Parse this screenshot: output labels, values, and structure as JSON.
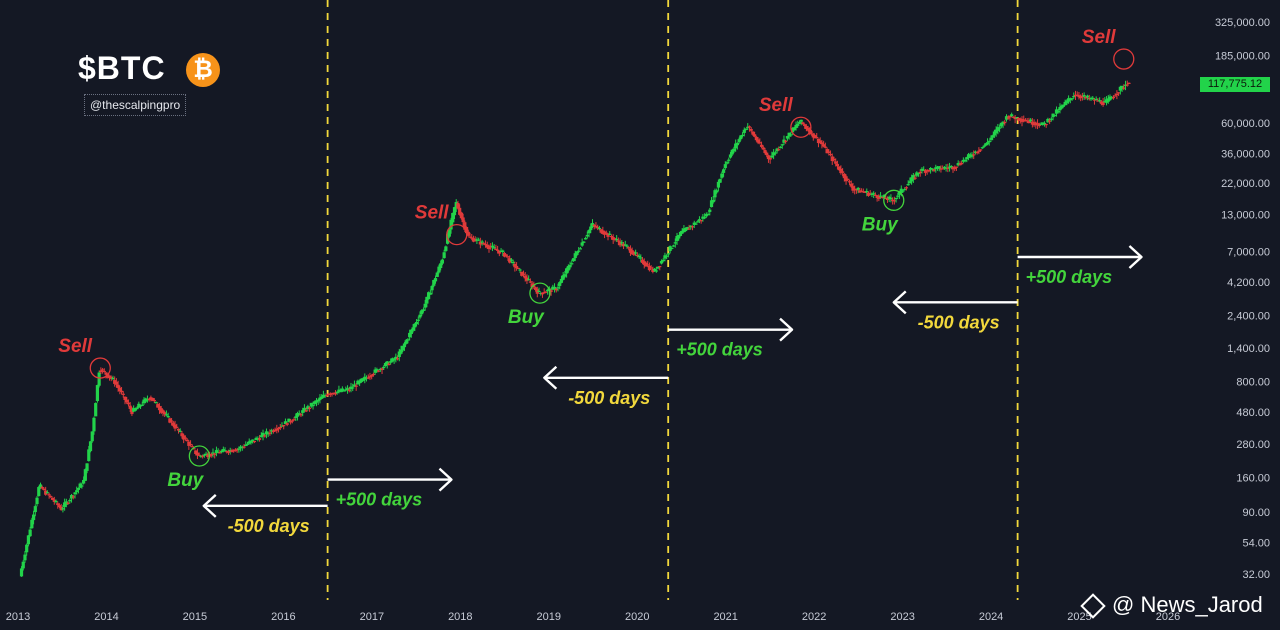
{
  "header": {
    "title": "$BTC",
    "logo_glyph": "₿",
    "handle": "@thescalpingpro",
    "current_price": "117,775.12"
  },
  "watermark": {
    "text": "@ News_Jarod",
    "icon": "binance-diamond-icon"
  },
  "colors": {
    "background": "#141824",
    "up": "#22d34a",
    "down": "#e03a3a",
    "halving_line": "#f2d83c",
    "arrow": "#ffffff",
    "buy": "#43d43c",
    "sell": "#e03a3a",
    "minus_label": "#f2d83c"
  },
  "chart_data": {
    "type": "candlestick",
    "scale": "log",
    "ylim": [
      25,
      325000
    ],
    "y_ticks": [
      {
        "value": 325000,
        "label": "325,000.00"
      },
      {
        "value": 185000,
        "label": "185,000.00"
      },
      {
        "value": 60000,
        "label": "60,000.00"
      },
      {
        "value": 36000,
        "label": "36,000.00"
      },
      {
        "value": 22000,
        "label": "22,000.00"
      },
      {
        "value": 13000,
        "label": "13,000.00"
      },
      {
        "value": 7000,
        "label": "7,000.00"
      },
      {
        "value": 4200,
        "label": "4,200.00"
      },
      {
        "value": 2400,
        "label": "2,400.00"
      },
      {
        "value": 1400,
        "label": "1,400.00"
      },
      {
        "value": 800,
        "label": "800.00"
      },
      {
        "value": 480,
        "label": "480.00"
      },
      {
        "value": 280,
        "label": "280.00"
      },
      {
        "value": 160,
        "label": "160.00"
      },
      {
        "value": 90,
        "label": "90.00"
      },
      {
        "value": 54,
        "label": "54.00"
      },
      {
        "value": 32,
        "label": "32.00"
      }
    ],
    "x_ticks": [
      "2013",
      "2014",
      "2015",
      "2016",
      "2017",
      "2018",
      "2019",
      "2020",
      "2021",
      "2022",
      "2023",
      "2024",
      "2025",
      "2026"
    ],
    "price_path": [
      {
        "x": 2013.0,
        "y": 25
      },
      {
        "x": 2013.25,
        "y": 140
      },
      {
        "x": 2013.5,
        "y": 95
      },
      {
        "x": 2013.75,
        "y": 150
      },
      {
        "x": 2013.85,
        "y": 350
      },
      {
        "x": 2013.93,
        "y": 1000
      },
      {
        "x": 2014.1,
        "y": 800
      },
      {
        "x": 2014.3,
        "y": 480
      },
      {
        "x": 2014.5,
        "y": 620
      },
      {
        "x": 2014.75,
        "y": 400
      },
      {
        "x": 2015.05,
        "y": 230
      },
      {
        "x": 2015.5,
        "y": 260
      },
      {
        "x": 2015.8,
        "y": 330
      },
      {
        "x": 2016.1,
        "y": 420
      },
      {
        "x": 2016.5,
        "y": 650
      },
      {
        "x": 2016.75,
        "y": 700
      },
      {
        "x": 2017.0,
        "y": 900
      },
      {
        "x": 2017.3,
        "y": 1200
      },
      {
        "x": 2017.6,
        "y": 2800
      },
      {
        "x": 2017.8,
        "y": 6000
      },
      {
        "x": 2017.96,
        "y": 16000
      },
      {
        "x": 2018.1,
        "y": 9000
      },
      {
        "x": 2018.5,
        "y": 6800
      },
      {
        "x": 2018.9,
        "y": 3500
      },
      {
        "x": 2019.1,
        "y": 3800
      },
      {
        "x": 2019.5,
        "y": 11000
      },
      {
        "x": 2019.9,
        "y": 7500
      },
      {
        "x": 2020.2,
        "y": 5000
      },
      {
        "x": 2020.5,
        "y": 9500
      },
      {
        "x": 2020.8,
        "y": 13000
      },
      {
        "x": 2021.0,
        "y": 30000
      },
      {
        "x": 2021.25,
        "y": 58000
      },
      {
        "x": 2021.5,
        "y": 33000
      },
      {
        "x": 2021.85,
        "y": 62000
      },
      {
        "x": 2022.1,
        "y": 42000
      },
      {
        "x": 2022.45,
        "y": 20000
      },
      {
        "x": 2022.9,
        "y": 16500
      },
      {
        "x": 2023.2,
        "y": 27000
      },
      {
        "x": 2023.6,
        "y": 29000
      },
      {
        "x": 2023.95,
        "y": 42000
      },
      {
        "x": 2024.2,
        "y": 68000
      },
      {
        "x": 2024.6,
        "y": 58000
      },
      {
        "x": 2024.95,
        "y": 97000
      },
      {
        "x": 2025.3,
        "y": 84000
      },
      {
        "x": 2025.55,
        "y": 117775
      }
    ],
    "halvings": [
      2016.5,
      2020.35,
      2024.3
    ],
    "annotations": [
      {
        "kind": "sell",
        "text": "Sell",
        "x": 2013.93,
        "y": 1000
      },
      {
        "kind": "buy",
        "text": "Buy",
        "x": 2015.05,
        "y": 230
      },
      {
        "kind": "sell",
        "text": "Sell",
        "x": 2017.96,
        "y": 9300
      },
      {
        "kind": "buy",
        "text": "Buy",
        "x": 2018.9,
        "y": 3500
      },
      {
        "kind": "sell",
        "text": "Sell",
        "x": 2021.85,
        "y": 56000
      },
      {
        "kind": "buy",
        "text": "Buy",
        "x": 2022.9,
        "y": 16500
      },
      {
        "kind": "sell",
        "text": "Sell",
        "x": 2025.5,
        "y": 175000
      }
    ],
    "arrows": [
      {
        "text": "-500 days",
        "direction": "left",
        "from": 2016.5,
        "to": 2015.1,
        "y": 100,
        "kind": "minus"
      },
      {
        "text": "+500 days",
        "direction": "right",
        "from": 2016.5,
        "to": 2017.9,
        "y": 155,
        "kind": "plus"
      },
      {
        "text": "-500 days",
        "direction": "left",
        "from": 2020.35,
        "to": 2018.95,
        "y": 850,
        "kind": "minus"
      },
      {
        "text": "+500 days",
        "direction": "right",
        "from": 2020.35,
        "to": 2021.75,
        "y": 1900,
        "kind": "plus"
      },
      {
        "text": "-500 days",
        "direction": "left",
        "from": 2024.3,
        "to": 2022.9,
        "y": 3000,
        "kind": "minus"
      },
      {
        "text": "+500 days",
        "direction": "right",
        "from": 2024.3,
        "to": 2025.7,
        "y": 6400,
        "kind": "plus"
      }
    ]
  }
}
